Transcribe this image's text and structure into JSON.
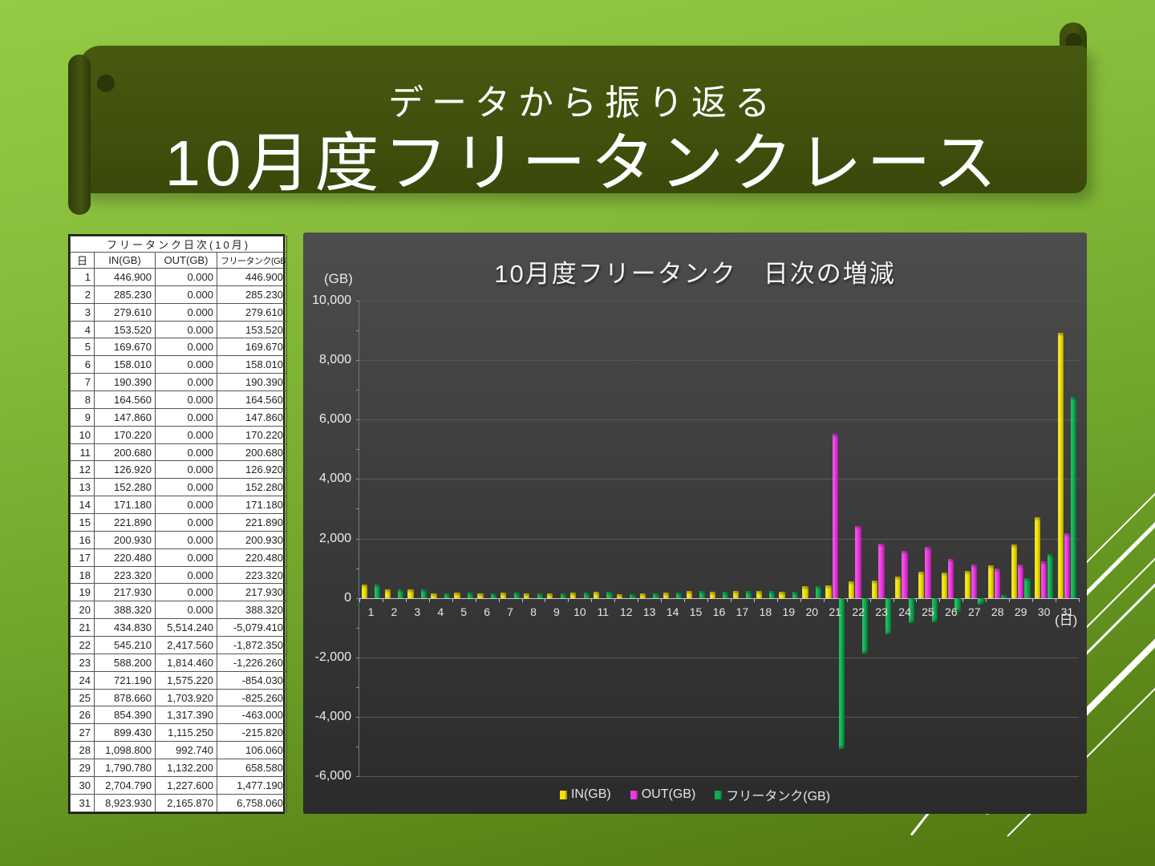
{
  "slide": {
    "subtitle": "データから振り返る",
    "title": "10月度フリータンクレース"
  },
  "table": {
    "title": "フリータンク日次(10月)",
    "headers": [
      "日",
      "IN(GB)",
      "OUT(GB)",
      "フリータンク(GB)"
    ],
    "rows": [
      [
        "1",
        "446.900",
        "0.000",
        "446.900"
      ],
      [
        "2",
        "285.230",
        "0.000",
        "285.230"
      ],
      [
        "3",
        "279.610",
        "0.000",
        "279.610"
      ],
      [
        "4",
        "153.520",
        "0.000",
        "153.520"
      ],
      [
        "5",
        "169.670",
        "0.000",
        "169.670"
      ],
      [
        "6",
        "158.010",
        "0.000",
        "158.010"
      ],
      [
        "7",
        "190.390",
        "0.000",
        "190.390"
      ],
      [
        "8",
        "164.560",
        "0.000",
        "164.560"
      ],
      [
        "9",
        "147.860",
        "0.000",
        "147.860"
      ],
      [
        "10",
        "170.220",
        "0.000",
        "170.220"
      ],
      [
        "11",
        "200.680",
        "0.000",
        "200.680"
      ],
      [
        "12",
        "126.920",
        "0.000",
        "126.920"
      ],
      [
        "13",
        "152.280",
        "0.000",
        "152.280"
      ],
      [
        "14",
        "171.180",
        "0.000",
        "171.180"
      ],
      [
        "15",
        "221.890",
        "0.000",
        "221.890"
      ],
      [
        "16",
        "200.930",
        "0.000",
        "200.930"
      ],
      [
        "17",
        "220.480",
        "0.000",
        "220.480"
      ],
      [
        "18",
        "223.320",
        "0.000",
        "223.320"
      ],
      [
        "19",
        "217.930",
        "0.000",
        "217.930"
      ],
      [
        "20",
        "388.320",
        "0.000",
        "388.320"
      ],
      [
        "21",
        "434.830",
        "5,514.240",
        "-5,079.410"
      ],
      [
        "22",
        "545.210",
        "2,417.560",
        "-1,872.350"
      ],
      [
        "23",
        "588.200",
        "1,814.460",
        "-1,226.260"
      ],
      [
        "24",
        "721.190",
        "1,575.220",
        "-854.030"
      ],
      [
        "25",
        "878.660",
        "1,703.920",
        "-825.260"
      ],
      [
        "26",
        "854.390",
        "1,317.390",
        "-463.000"
      ],
      [
        "27",
        "899.430",
        "1,115.250",
        "-215.820"
      ],
      [
        "28",
        "1,098.800",
        "992.740",
        "106.060"
      ],
      [
        "29",
        "1,790.780",
        "1,132.200",
        "658.580"
      ],
      [
        "30",
        "2,704.790",
        "1,227.600",
        "1,477.190"
      ],
      [
        "31",
        "8,923.930",
        "2,165.870",
        "6,758.060"
      ]
    ]
  },
  "chart_data": {
    "type": "bar",
    "title": "10月度フリータンク　日次の増減",
    "y_unit_label": "(GB)",
    "x_unit_label": "(日)",
    "categories": [
      1,
      2,
      3,
      4,
      5,
      6,
      7,
      8,
      9,
      10,
      11,
      12,
      13,
      14,
      15,
      16,
      17,
      18,
      19,
      20,
      21,
      22,
      23,
      24,
      25,
      26,
      27,
      28,
      29,
      30,
      31
    ],
    "series": [
      {
        "name": "IN(GB)",
        "color": "#f2e300",
        "values": [
          446.9,
          285.23,
          279.61,
          153.52,
          169.67,
          158.01,
          190.39,
          164.56,
          147.86,
          170.22,
          200.68,
          126.92,
          152.28,
          171.18,
          221.89,
          200.93,
          220.48,
          223.32,
          217.93,
          388.32,
          434.83,
          545.21,
          588.2,
          721.19,
          878.66,
          854.39,
          899.43,
          1098.8,
          1790.78,
          2704.79,
          8923.93
        ]
      },
      {
        "name": "OUT(GB)",
        "color": "#ee3be0",
        "values": [
          0,
          0,
          0,
          0,
          0,
          0,
          0,
          0,
          0,
          0,
          0,
          0,
          0,
          0,
          0,
          0,
          0,
          0,
          0,
          0,
          5514.24,
          2417.56,
          1814.46,
          1575.22,
          1703.92,
          1317.39,
          1115.25,
          992.74,
          1132.2,
          1227.6,
          2165.87
        ]
      },
      {
        "name": "フリータンク(GB)",
        "color": "#10ac50",
        "values": [
          446.9,
          285.23,
          279.61,
          153.52,
          169.67,
          158.01,
          190.39,
          164.56,
          147.86,
          170.22,
          200.68,
          126.92,
          152.28,
          171.18,
          221.89,
          200.93,
          220.48,
          223.32,
          217.93,
          388.32,
          -5079.41,
          -1872.35,
          -1226.26,
          -854.03,
          -825.26,
          -463.0,
          -215.82,
          106.06,
          658.58,
          1477.19,
          6758.06
        ]
      }
    ],
    "ylim": [
      -6000,
      10000
    ],
    "ytick_step": 2000,
    "y_minor_step": 1000,
    "grid": true,
    "legend_position": "bottom"
  },
  "colors": {
    "accent_yellow": "#f2e300",
    "accent_magenta": "#ee3be0",
    "accent_green": "#10ac50",
    "banner_green": "#41510d",
    "background_green": "#7fb434",
    "chart_panel": "#3a3a3a"
  }
}
